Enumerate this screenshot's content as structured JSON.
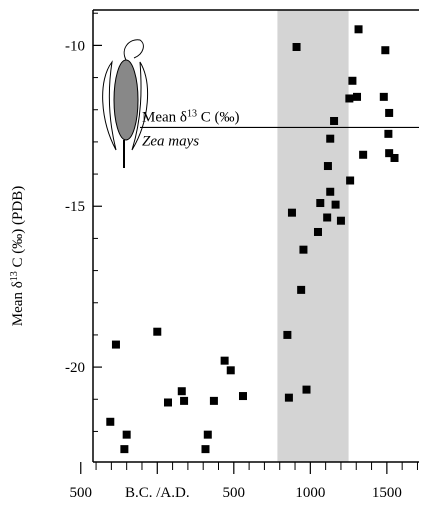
{
  "chart_data": {
    "type": "scatter",
    "y_label_parts": [
      "Mean  δ",
      "13",
      " C (‰) (PDB)"
    ],
    "xlim": [
      -420,
      1710
    ],
    "ylim": [
      -22.95,
      -8.9
    ],
    "xticks": [
      {
        "value": -500,
        "label": "500"
      },
      {
        "value": 0,
        "label": "B.C. /A.D."
      },
      500,
      1000,
      1500
    ],
    "xminor_ticks": [
      -400,
      -300,
      -200,
      -100,
      100,
      200,
      300,
      400,
      600,
      700,
      800,
      900,
      1100,
      1200,
      1300,
      1400,
      1600,
      1700
    ],
    "yticks": [
      -20,
      -15,
      -10
    ],
    "yminor_ticks": [
      -22,
      -21,
      -19,
      -18,
      -17,
      -16,
      -14,
      -13,
      -12,
      -11,
      -9
    ],
    "shaded_range": [
      785,
      1250
    ],
    "shade_color": "#d4d4d4",
    "color": "#000000",
    "reference_line": {
      "value": -12.55,
      "label_parts": [
        "Mean δ",
        "13",
        " C (‰)"
      ],
      "sublabel": "Zea mays"
    },
    "x": [
      -307,
      -270,
      -200,
      -215,
      0,
      70,
      160,
      175,
      370,
      330,
      315,
      440,
      480,
      560,
      850,
      860,
      880,
      910,
      975,
      940,
      955,
      1050,
      1065,
      1110,
      1115,
      1130,
      1130,
      1155,
      1165,
      1200,
      1260,
      1255,
      1275,
      1305,
      1315,
      1345,
      1480,
      1490,
      1515,
      1510,
      1515,
      1550
    ],
    "values": [
      -21.7,
      -19.3,
      -22.1,
      -22.55,
      -18.9,
      -21.1,
      -20.75,
      -21.05,
      -21.05,
      -22.1,
      -22.55,
      -19.8,
      -20.1,
      -20.9,
      -19.0,
      -20.95,
      -15.2,
      -10.05,
      -20.7,
      -17.6,
      -16.35,
      -15.8,
      -14.9,
      -15.35,
      -13.75,
      -14.55,
      -12.9,
      -12.35,
      -14.95,
      -15.45,
      -14.2,
      -11.65,
      -11.1,
      -11.6,
      -9.5,
      -13.4,
      -11.6,
      -10.15,
      -12.1,
      -12.75,
      -13.35,
      -13.5
    ]
  }
}
